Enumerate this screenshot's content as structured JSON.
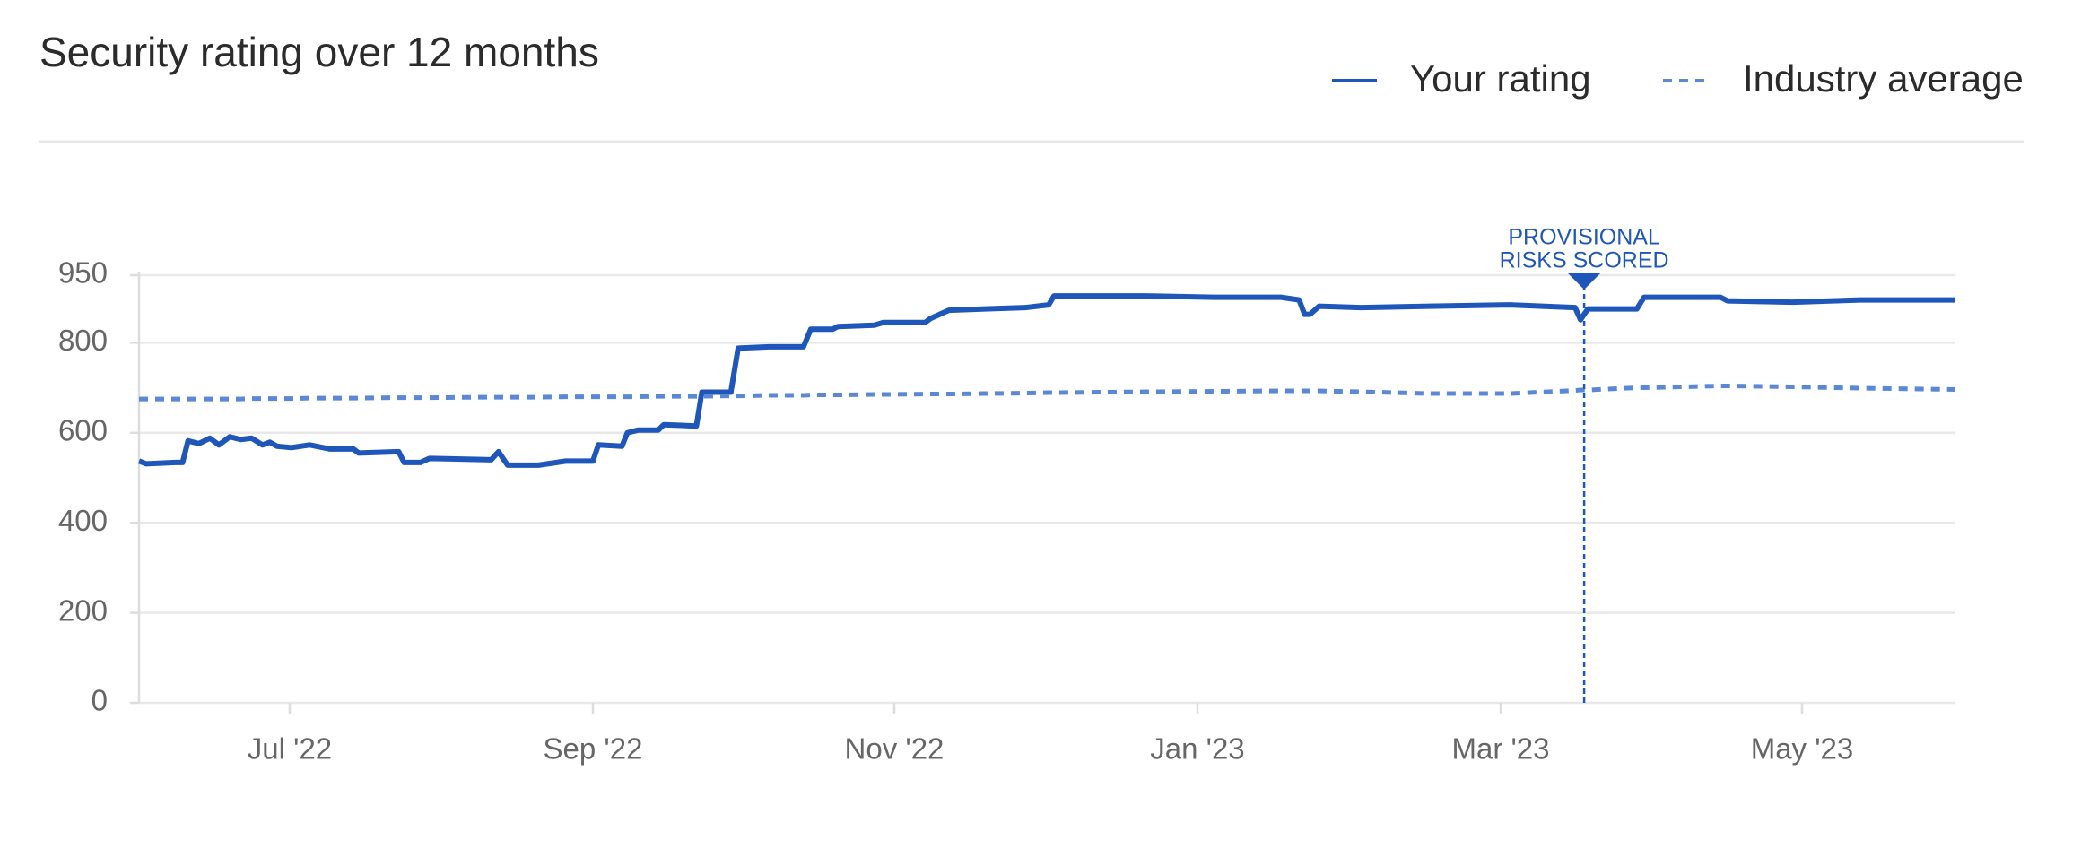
{
  "chart_data": {
    "type": "line",
    "title": "Security rating over 12 months",
    "x": [
      2022.417,
      2022.421,
      2022.437,
      2022.441,
      2022.444,
      2022.45,
      2022.456,
      2022.461,
      2022.467,
      2022.473,
      2022.479,
      2022.485,
      2022.489,
      2022.493,
      2022.501,
      2022.511,
      2022.522,
      2022.535,
      2022.538,
      2022.56,
      2022.563,
      2022.572,
      2022.577,
      2022.611,
      2022.615,
      2022.62,
      2022.637,
      2022.652,
      2022.667,
      2022.67,
      2022.683,
      2022.686,
      2022.692,
      2022.703,
      2022.706,
      2022.724,
      2022.727,
      2022.743,
      2022.747,
      2022.764,
      2022.783,
      2022.787,
      2022.799,
      2022.802,
      2022.822,
      2022.827,
      2022.85,
      2022.853,
      2022.863,
      2022.883,
      2022.905,
      2022.918,
      2022.921,
      2022.972,
      2023.009,
      2023.046,
      2023.056,
      2023.059,
      2023.062,
      2023.067,
      2023.09,
      2023.128,
      2023.172,
      2023.208,
      2023.211,
      2023.215,
      2023.242,
      2023.246,
      2023.288,
      2023.292,
      2023.328,
      2023.365,
      2023.417
    ],
    "series": [
      {
        "name": "Your rating",
        "color": "#1f56b9",
        "style": "solid",
        "values": [
          537,
          531,
          534,
          534,
          582,
          576,
          588,
          573,
          591,
          585,
          588,
          573,
          579,
          570,
          567,
          573,
          564,
          564,
          555,
          558,
          534,
          534,
          543,
          540,
          558,
          528,
          528,
          537,
          537,
          573,
          570,
          600,
          606,
          606,
          618,
          615,
          690,
          690,
          788,
          791,
          791,
          830,
          830,
          836,
          839,
          845,
          845,
          854,
          872,
          875,
          878,
          884,
          904,
          904,
          901,
          901,
          895,
          863,
          863,
          881,
          878,
          881,
          884,
          878,
          851,
          875,
          875,
          901,
          901,
          893,
          890,
          895,
          895
        ]
      },
      {
        "name": "Industry average",
        "color": "#5b88d6",
        "style": "dashed",
        "values": [
          675,
          675,
          675,
          675,
          675,
          675,
          675,
          675,
          675,
          675,
          676,
          676,
          676,
          676,
          676,
          677,
          677,
          677,
          677,
          678,
          678,
          678,
          678,
          679,
          679,
          679,
          679,
          680,
          680,
          680,
          680,
          680,
          680,
          681,
          681,
          681,
          681,
          682,
          682,
          683,
          683,
          684,
          684,
          684,
          685,
          685,
          686,
          686,
          686,
          687,
          688,
          689,
          689,
          691,
          692,
          693,
          693,
          693,
          693,
          693,
          691,
          687,
          687,
          694,
          695,
          695,
          700,
          700,
          704,
          704,
          702,
          699,
          696
        ]
      }
    ],
    "xlim": [
      2022.417,
      2023.417
    ],
    "xticks": [
      {
        "value": 2022.5,
        "label": "Jul '22"
      },
      {
        "value": 2022.667,
        "label": "Sep '22"
      },
      {
        "value": 2022.833,
        "label": "Nov '22"
      },
      {
        "value": 2023.0,
        "label": "Jan '23"
      },
      {
        "value": 2023.167,
        "label": "Mar '23"
      },
      {
        "value": 2023.333,
        "label": "May '23"
      }
    ],
    "ylim": [
      0,
      950
    ],
    "yticks": [
      0,
      200,
      400,
      600,
      800,
      950
    ],
    "grid": true,
    "legend": "top-right",
    "annotation": {
      "x": 2023.213,
      "lines": [
        "PROVISIONAL",
        "RISKS SCORED"
      ],
      "color": "#1f56b9"
    }
  }
}
